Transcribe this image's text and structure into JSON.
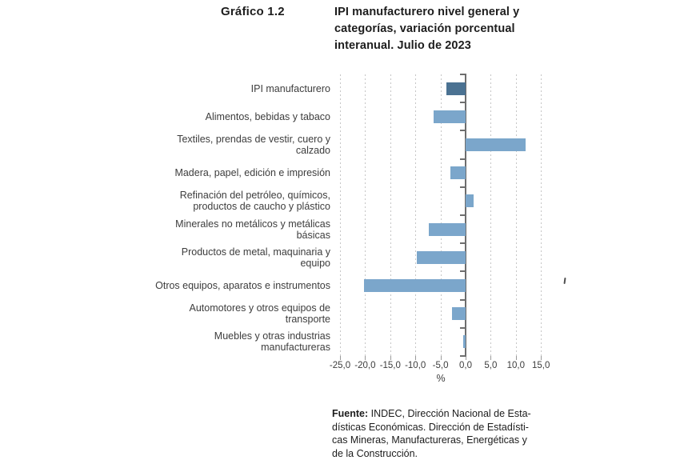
{
  "header": {
    "figure_label": "Gráfico 1.2",
    "title": "IPI manufacturero nivel general y\ncategorías, variación porcentual\ninteranual. Julio de 2023"
  },
  "chart_data": {
    "type": "bar",
    "orientation": "horizontal",
    "title": "IPI manufacturero nivel general y categorías, variación porcentual interanual. Julio de 2023",
    "categories": [
      "IPI manufacturero",
      "Alimentos, bebidas y tabaco",
      "Textiles, prendas de vestir, cuero y\ncalzado",
      "Madera, papel, edición e impresión",
      "Refinación del petróleo, químicos,\nproductos de caucho y plástico",
      "Minerales no metálicos y metálicas\nbásicas",
      "Productos de metal, maquinaria y\nequipo",
      "Otros equipos, aparatos e instrumentos",
      "Automotores y otros equipos de\ntransporte",
      "Muebles y otras industrias\nmanufactureras"
    ],
    "values": [
      -3.9,
      -6.3,
      12.0,
      -3.0,
      1.6,
      -7.3,
      -9.7,
      -20.3,
      -2.7,
      -0.5
    ],
    "xlabel": "%",
    "xticks": [
      -25,
      -20,
      -15,
      -10,
      -5,
      0,
      5,
      10,
      15
    ],
    "xtick_labels": [
      "-25,0",
      "-20,0",
      "-15,0",
      "-10,0",
      "-5,0",
      "0,0",
      "5,0",
      "10,0",
      "15,0"
    ],
    "xlim": [
      -27,
      17.5
    ],
    "grid": "vertical-dashed",
    "legend": "none",
    "bar_color_default": "#7ba6cb",
    "bar_color_first": "#4b7292",
    "axis_color": "#6e6e6e",
    "gridline_color": "#c6c6c6"
  },
  "footer": {
    "source_label": "Fuente:",
    "source_text": "INDEC, Dirección Nacional de Esta-\ndísticas Económicas. Dirección de Estadísti-\ncas Mineras, Manufactureras, Energéticas y\nde la Construcción."
  }
}
